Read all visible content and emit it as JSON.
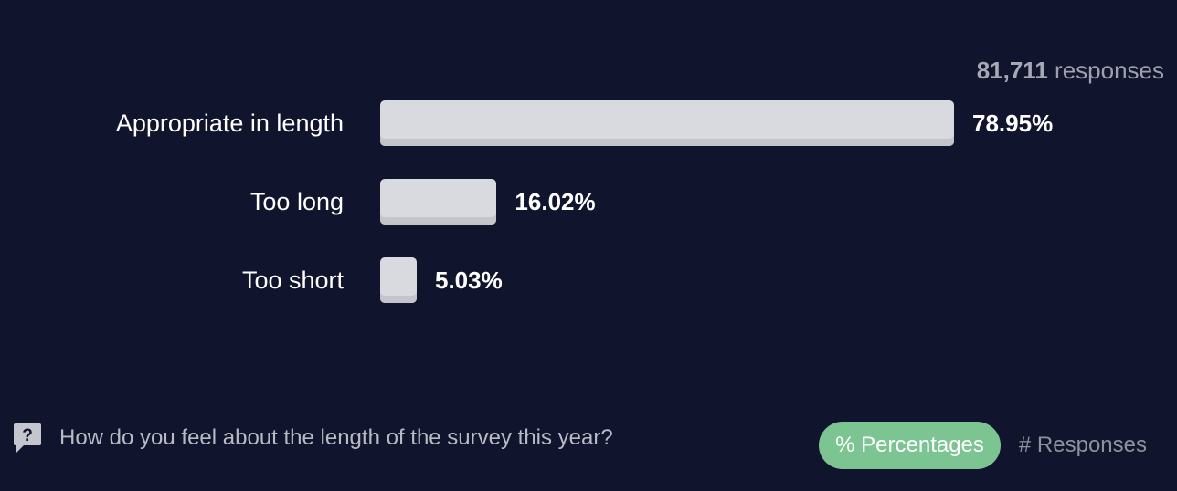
{
  "summary": {
    "total_count": "81,711",
    "total_suffix": "responses"
  },
  "chart_data": {
    "type": "bar",
    "orientation": "horizontal",
    "categories": [
      "Appropriate in length",
      "Too long",
      "Too short"
    ],
    "values": [
      78.95,
      16.02,
      5.03
    ],
    "value_labels": [
      "78.95%",
      "16.02%",
      "5.03%"
    ],
    "unit": "%",
    "title": "",
    "xlabel": "",
    "ylabel": "",
    "grid": false,
    "colors": {
      "bar": "#d9dadf",
      "background": "#10142c",
      "label": "#ffffff"
    }
  },
  "footer": {
    "question_icon": "question-speech-bubble-icon",
    "question": "How do you feel about the length of the survey this year?",
    "toggle": {
      "percentages_label": "% Percentages",
      "responses_label": "# Responses",
      "active": "percentages",
      "active_color": "#7cc491"
    }
  }
}
